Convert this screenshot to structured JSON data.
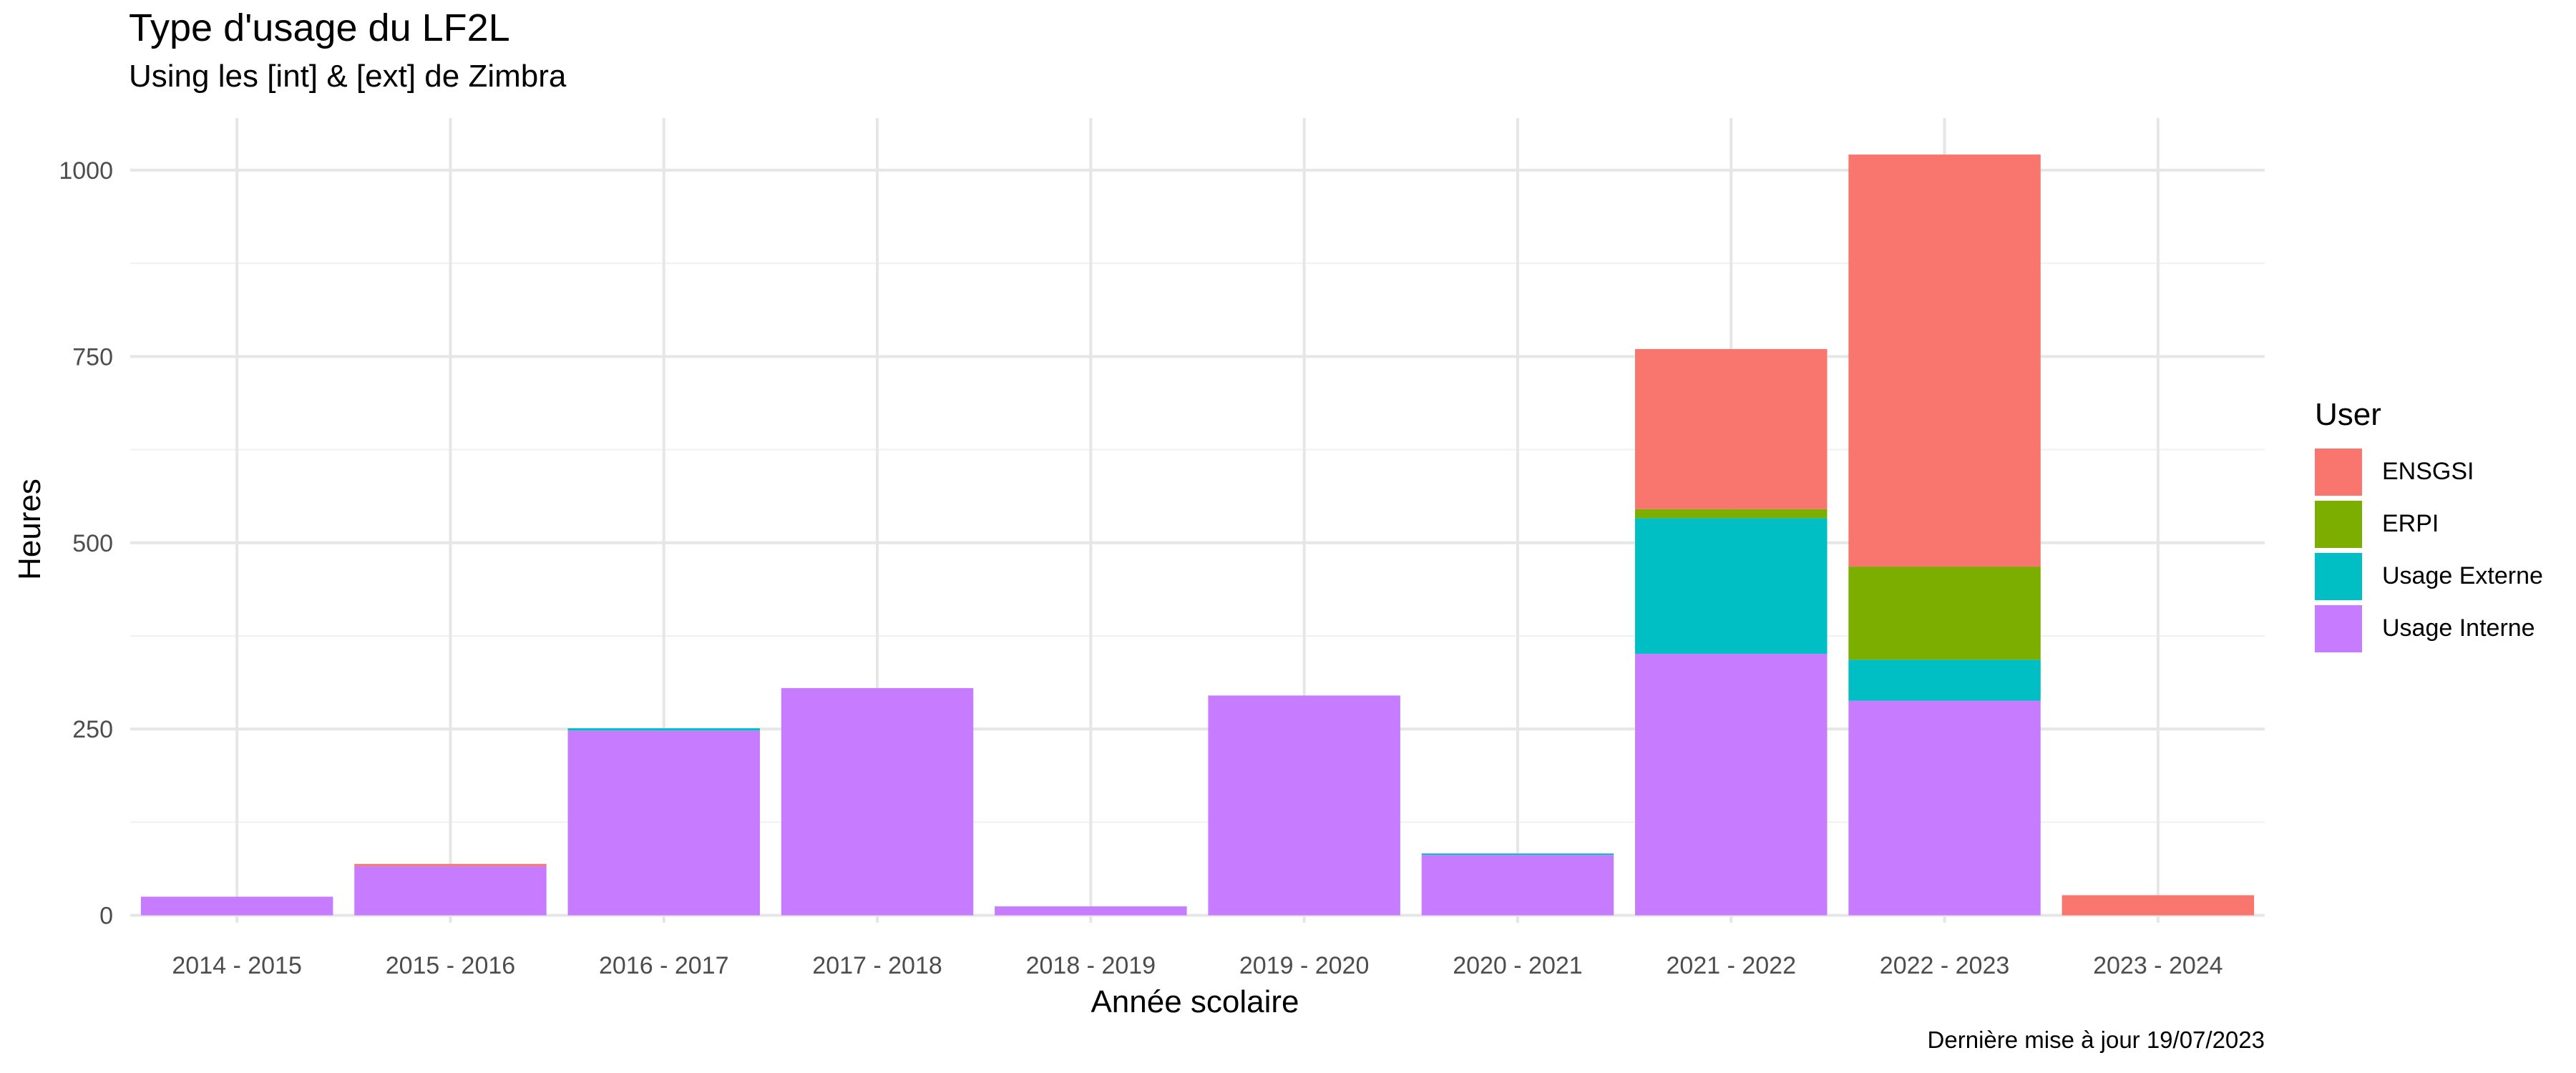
{
  "chart_data": {
    "type": "bar",
    "stacked": true,
    "title": "Type d'usage du LF2L",
    "subtitle": "Using les [int] & [ext] de Zimbra",
    "caption": "Dernière mise à jour 19/07/2023",
    "xlabel": "Année scolaire",
    "ylabel": "Heures",
    "ylim": [
      -10,
      1070
    ],
    "yticks": [
      0,
      250,
      500,
      750,
      1000
    ],
    "grid": true,
    "legend_title": "User",
    "legend_position": "right",
    "categories": [
      "2014 - 2015",
      "2015 - 2016",
      "2016 - 2017",
      "2017 - 2018",
      "2018 - 2019",
      "2019 - 2020",
      "2020 - 2021",
      "2021 - 2022",
      "2022 - 2023",
      "2023 - 2024"
    ],
    "series": [
      {
        "name": "Usage Interne",
        "color": "#C77CFF",
        "values": [
          25,
          66,
          248,
          305,
          12,
          295,
          81,
          351,
          288,
          0
        ]
      },
      {
        "name": "Usage Externe",
        "color": "#00BFC4",
        "values": [
          0,
          0,
          3,
          0,
          0,
          0,
          2,
          182,
          55,
          0
        ]
      },
      {
        "name": "ERPI",
        "color": "#7CAE00",
        "values": [
          0,
          0,
          0,
          0,
          0,
          0,
          0,
          12,
          125,
          0
        ]
      },
      {
        "name": "ENSGSI",
        "color": "#F8766D",
        "values": [
          0,
          3,
          0,
          0,
          0,
          0,
          0,
          215,
          553,
          27
        ]
      }
    ],
    "legend_order": [
      "ENSGSI",
      "ERPI",
      "Usage Externe",
      "Usage Interne"
    ]
  }
}
